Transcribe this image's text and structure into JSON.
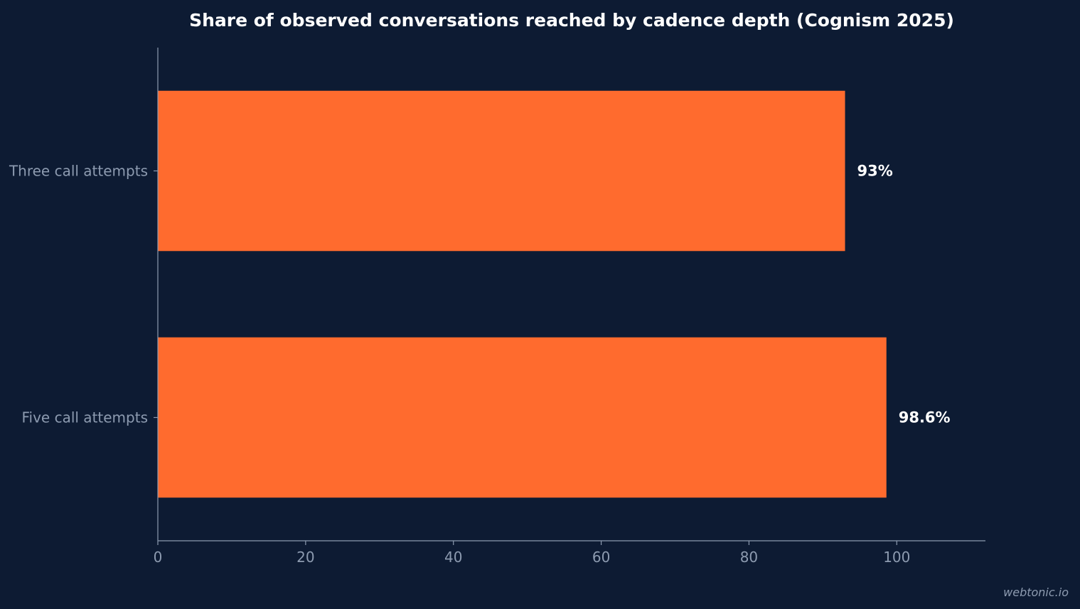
{
  "chart_data": {
    "type": "bar",
    "orientation": "horizontal",
    "title": "Share of observed conversations reached by cadence depth (Cognism 2025)",
    "xlabel": "",
    "ylabel": "",
    "categories": [
      "Three call attempts",
      "Five call attempts"
    ],
    "values": [
      93,
      98.6
    ],
    "value_labels": [
      "93%",
      "98.6%"
    ],
    "xlim": [
      0,
      112
    ],
    "xticks": [
      0,
      20,
      40,
      60,
      80,
      100
    ],
    "xtick_labels": [
      "0",
      "20",
      "40",
      "60",
      "80",
      "100"
    ],
    "grid": false,
    "legend": "none"
  },
  "colors": {
    "background": "#0d1b33",
    "bar": "#ff6b2e",
    "axis": "#8d9bb0",
    "text": "#ffffff"
  },
  "footer": {
    "watermark": "webtonic.io"
  }
}
